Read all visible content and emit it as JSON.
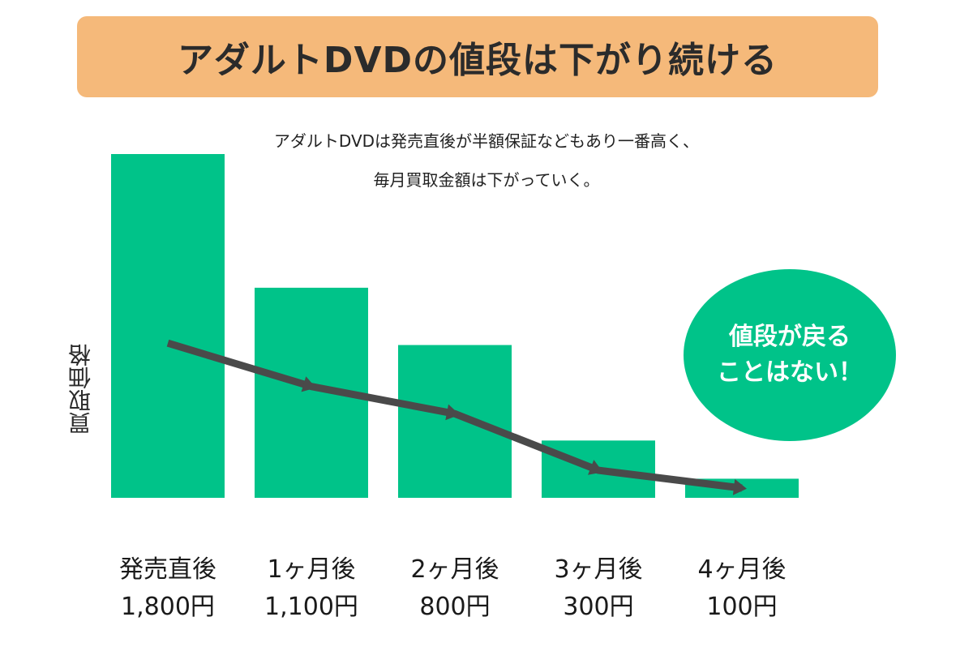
{
  "header": {
    "title": "アダルトDVDの値段は下がり続ける"
  },
  "subtitle": {
    "line1": "アダルトDVDは発売直後が半額保証などもあり一番高く、",
    "line2": "毎月買取金額は下がっていく。"
  },
  "callout": {
    "line1": "値段が戻る",
    "line2": "ことはない！"
  },
  "colors": {
    "bar": "#00c389",
    "banner": "#f5b97a",
    "trend_line": "#4a4a4a",
    "callout_text": "#ffffff"
  },
  "chart_data": {
    "type": "bar",
    "title": "アダルトDVDの値段は下がり続ける",
    "ylabel": "買取価格",
    "xlabel": "",
    "categories": [
      "発売直後",
      "1ヶ月後",
      "2ヶ月後",
      "3ヶ月後",
      "4ヶ月後"
    ],
    "value_labels": [
      "1,800円",
      "1,100円",
      "800円",
      "300円",
      "100円"
    ],
    "values": [
      1800,
      1100,
      800,
      300,
      100
    ],
    "ylim": [
      0,
      1800
    ],
    "grid": false,
    "overlay": {
      "type": "line",
      "shape": "downward trend arrow across bars"
    }
  }
}
